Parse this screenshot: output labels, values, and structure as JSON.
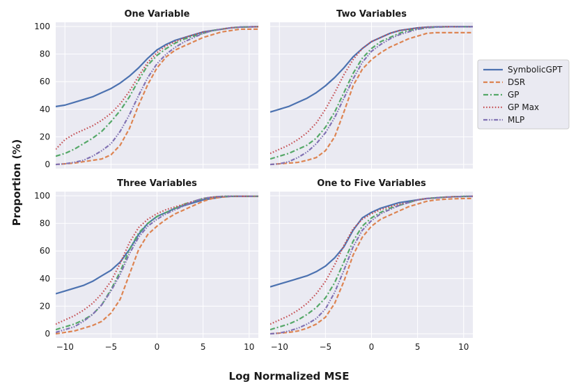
{
  "figure": {
    "xlabel": "Log Normalized MSE",
    "ylabel": "Proportion (%)"
  },
  "legend": {
    "position": "right",
    "entries": [
      {
        "name": "SymbolicGPT",
        "color": "#4c72b0",
        "style": "solid"
      },
      {
        "name": "DSR",
        "color": "#dd8452",
        "style": "dashed"
      },
      {
        "name": "GP",
        "color": "#55a868",
        "style": "dashdot"
      },
      {
        "name": "GP Max",
        "color": "#c44e52",
        "style": "dotted"
      },
      {
        "name": "MLP",
        "color": "#8172b3",
        "style": "dashdotdot"
      }
    ]
  },
  "chart_data": [
    {
      "type": "line",
      "title": "One Variable",
      "xlim": [
        -11,
        11
      ],
      "ylim": [
        -3,
        103
      ],
      "xticks": [
        -10,
        -5,
        0,
        5,
        10
      ],
      "yticks": [
        0,
        20,
        40,
        60,
        80,
        100
      ],
      "x": [
        -11,
        -10,
        -9,
        -8,
        -7,
        -6,
        -5,
        -4,
        -3,
        -2,
        -1,
        0,
        1,
        2,
        3,
        4,
        5,
        6,
        7,
        8,
        9,
        10,
        11
      ],
      "series": [
        {
          "name": "SymbolicGPT",
          "values": [
            42,
            43,
            45,
            47,
            49,
            52,
            55,
            59,
            64,
            70,
            77,
            83,
            87,
            90,
            92,
            94,
            96,
            97,
            98,
            99,
            99.5,
            99.7,
            99.8
          ]
        },
        {
          "name": "DSR",
          "values": [
            0,
            0.5,
            1,
            2,
            3,
            4,
            7,
            14,
            26,
            43,
            58,
            70,
            78,
            83,
            86,
            89,
            92,
            94,
            96,
            97,
            98,
            98,
            98
          ]
        },
        {
          "name": "GP",
          "values": [
            6,
            8,
            11,
            15,
            19,
            24,
            31,
            39,
            49,
            61,
            72,
            79,
            84,
            88,
            91,
            93,
            95,
            97,
            98,
            99,
            99.5,
            99.7,
            99.8
          ]
        },
        {
          "name": "GP Max",
          "values": [
            11,
            18,
            22,
            25,
            28,
            32,
            37,
            44,
            53,
            64,
            74,
            81,
            86,
            89,
            92,
            94,
            96,
            97,
            98,
            99,
            99.5,
            99.7,
            99.8
          ]
        },
        {
          "name": "MLP",
          "values": [
            0,
            0.5,
            1.5,
            3,
            6,
            10,
            15,
            24,
            36,
            50,
            63,
            73,
            80,
            85,
            89,
            92,
            95,
            97,
            98,
            99,
            99.5,
            99.7,
            99.8
          ]
        }
      ]
    },
    {
      "type": "line",
      "title": "Two Variables",
      "xlim": [
        -11,
        11
      ],
      "ylim": [
        -3,
        103
      ],
      "xticks": [
        -10,
        -5,
        0,
        5,
        10
      ],
      "yticks": [
        0,
        20,
        40,
        60,
        80,
        100
      ],
      "x": [
        -11,
        -10,
        -9,
        -8,
        -7,
        -6,
        -5,
        -4,
        -3,
        -2,
        -1,
        0,
        1,
        2,
        3,
        4,
        5,
        6,
        7,
        8,
        9,
        10,
        11
      ],
      "series": [
        {
          "name": "SymbolicGPT",
          "values": [
            38,
            40,
            42,
            45,
            48,
            52,
            57,
            63,
            70,
            78,
            84,
            89,
            92,
            95,
            97,
            98,
            99,
            99.5,
            99.7,
            99.8,
            99.8,
            99.8,
            99.8
          ]
        },
        {
          "name": "DSR",
          "values": [
            0,
            0.5,
            1,
            1.5,
            3,
            5,
            10,
            20,
            38,
            57,
            69,
            76,
            81,
            85,
            88,
            91,
            93,
            95,
            95.5,
            95.5,
            95.5,
            95.5,
            95.5
          ]
        },
        {
          "name": "GP",
          "values": [
            4,
            6,
            8,
            11,
            14,
            19,
            27,
            38,
            52,
            66,
            77,
            84,
            89,
            92,
            95,
            97,
            98,
            99,
            99.5,
            99.7,
            99.8,
            99.8,
            99.8
          ]
        },
        {
          "name": "GP Max",
          "values": [
            8,
            11,
            14,
            18,
            23,
            30,
            40,
            52,
            65,
            76,
            84,
            89,
            92,
            95,
            97,
            98,
            99,
            99.5,
            99.7,
            99.8,
            99.8,
            99.8,
            99.8
          ]
        },
        {
          "name": "MLP",
          "values": [
            0,
            0.5,
            2,
            5,
            9,
            15,
            23,
            34,
            48,
            62,
            74,
            82,
            87,
            91,
            94,
            96,
            98,
            99,
            99.5,
            99.7,
            99.8,
            99.8,
            99.8
          ]
        }
      ]
    },
    {
      "type": "line",
      "title": "Three Variables",
      "xlim": [
        -11,
        11
      ],
      "ylim": [
        -3,
        103
      ],
      "xticks": [
        -10,
        -5,
        0,
        5,
        10
      ],
      "yticks": [
        0,
        20,
        40,
        60,
        80,
        100
      ],
      "x": [
        -11,
        -10,
        -9,
        -8,
        -7,
        -6,
        -5,
        -4,
        -3,
        -2,
        -1,
        0,
        1,
        2,
        3,
        4,
        5,
        6,
        7,
        8,
        9,
        10,
        11
      ],
      "series": [
        {
          "name": "SymbolicGPT",
          "values": [
            29,
            31,
            33,
            35,
            38,
            42,
            46,
            52,
            61,
            72,
            80,
            85,
            88,
            91,
            93,
            95,
            97,
            98,
            99,
            99.5,
            99.6,
            99.6,
            99.6
          ]
        },
        {
          "name": "DSR",
          "values": [
            0,
            1,
            2,
            4,
            6,
            9,
            15,
            25,
            43,
            61,
            72,
            78,
            83,
            87,
            90,
            93,
            96,
            98,
            99,
            99.5,
            99.6,
            99.6,
            99.6
          ]
        },
        {
          "name": "GP",
          "values": [
            3,
            5,
            7,
            10,
            14,
            21,
            32,
            45,
            61,
            73,
            80,
            85,
            88,
            91,
            94,
            96,
            98,
            99,
            99.5,
            99.6,
            99.6,
            99.6,
            99.6
          ]
        },
        {
          "name": "GP Max",
          "values": [
            7,
            10,
            13,
            17,
            22,
            29,
            38,
            51,
            66,
            77,
            83,
            87,
            90,
            92,
            94,
            96,
            98,
            99,
            99.5,
            99.6,
            99.6,
            99.6,
            99.6
          ]
        },
        {
          "name": "MLP",
          "values": [
            1,
            3,
            5,
            9,
            14,
            21,
            31,
            43,
            58,
            70,
            78,
            83,
            87,
            90,
            93,
            96,
            98,
            99,
            99.5,
            99.6,
            99.6,
            99.6,
            99.6
          ]
        }
      ]
    },
    {
      "type": "line",
      "title": "One to Five Variables",
      "xlim": [
        -11,
        11
      ],
      "ylim": [
        -3,
        103
      ],
      "xticks": [
        -10,
        -5,
        0,
        5,
        10
      ],
      "yticks": [
        0,
        20,
        40,
        60,
        80,
        100
      ],
      "x": [
        -11,
        -10,
        -9,
        -8,
        -7,
        -6,
        -5,
        -4,
        -3,
        -2,
        -1,
        0,
        1,
        2,
        3,
        4,
        5,
        6,
        7,
        8,
        9,
        10,
        11
      ],
      "series": [
        {
          "name": "SymbolicGPT",
          "values": [
            34,
            36,
            38,
            40,
            42,
            45,
            49,
            55,
            63,
            75,
            84,
            88,
            91,
            93,
            95,
            96,
            97,
            98,
            98.5,
            99,
            99.3,
            99.5,
            99.6
          ]
        },
        {
          "name": "DSR",
          "values": [
            0,
            0.5,
            1,
            2,
            4,
            7,
            12,
            22,
            38,
            57,
            70,
            78,
            83,
            86,
            89,
            92,
            94,
            96,
            97,
            97.5,
            97.8,
            98,
            98
          ]
        },
        {
          "name": "GP",
          "values": [
            3,
            5,
            7,
            10,
            14,
            19,
            26,
            37,
            52,
            67,
            78,
            84,
            88,
            91,
            93,
            95,
            97,
            98,
            98.5,
            99,
            99.3,
            99.5,
            99.6
          ]
        },
        {
          "name": "GP Max",
          "values": [
            7,
            10,
            13,
            17,
            22,
            29,
            38,
            50,
            64,
            76,
            83,
            87,
            90,
            92,
            94,
            95,
            97,
            98,
            98.5,
            99,
            99.3,
            99.5,
            99.6
          ]
        },
        {
          "name": "MLP",
          "values": [
            0,
            0.5,
            2,
            4,
            7,
            11,
            18,
            30,
            46,
            63,
            75,
            82,
            87,
            90,
            93,
            95,
            97,
            98,
            98.5,
            99,
            99.3,
            99.5,
            99.6
          ]
        }
      ]
    }
  ]
}
